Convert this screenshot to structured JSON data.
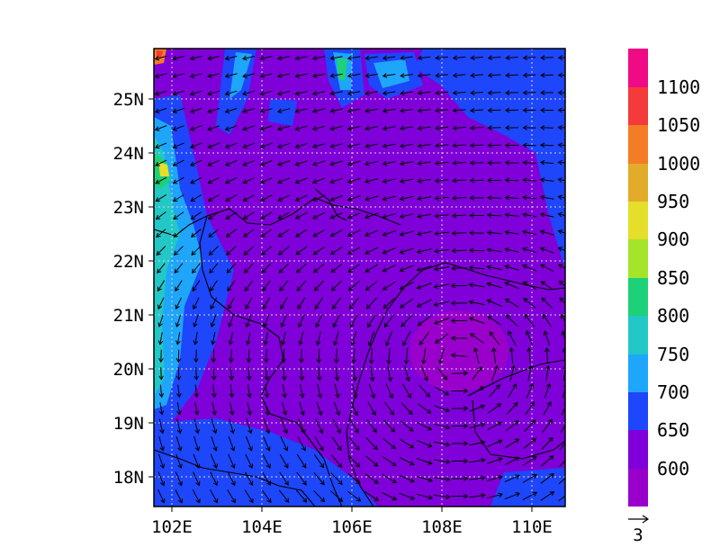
{
  "map": {
    "lon_range": [
      101.7,
      110.8
    ],
    "lat_range": [
      17.4,
      25.9
    ],
    "lon_ticks": [
      "102E",
      "104E",
      "106E",
      "108E",
      "110E"
    ],
    "lat_ticks": [
      "18N",
      "19N",
      "20N",
      "21N",
      "22N",
      "23N",
      "24N",
      "25N"
    ],
    "gridlines": true,
    "background_color": "#7f00d8"
  },
  "colorbar": {
    "labels": [
      "1100",
      "1050",
      "1000",
      "950",
      "900",
      "850",
      "800",
      "750",
      "700",
      "650",
      "600"
    ],
    "colors": [
      "#f00a86",
      "#f43a3a",
      "#f47c25",
      "#e2ac2a",
      "#e5de2a",
      "#a4e52a",
      "#1cd177",
      "#22c8c6",
      "#1ea6fb",
      "#1e46fb",
      "#7f00d8",
      "#9a00cc"
    ]
  },
  "vector_reference": {
    "label": "3"
  }
}
